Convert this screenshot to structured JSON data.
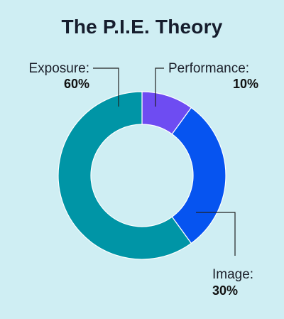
{
  "chart_data": {
    "type": "pie",
    "title": "The P.I.E. Theory",
    "slices": [
      {
        "label": "Performance",
        "value": 10,
        "display": "10%",
        "color": "#6e4cf2"
      },
      {
        "label": "Image",
        "value": 30,
        "display": "30%",
        "color": "#0654f0"
      },
      {
        "label": "Exposure",
        "value": 60,
        "display": "60%",
        "color": "#0095a6"
      }
    ],
    "donut": true,
    "legend": "none"
  },
  "colors": {
    "background": "#cfeef3",
    "title": "#161d2d",
    "leader_line": "#222222"
  }
}
